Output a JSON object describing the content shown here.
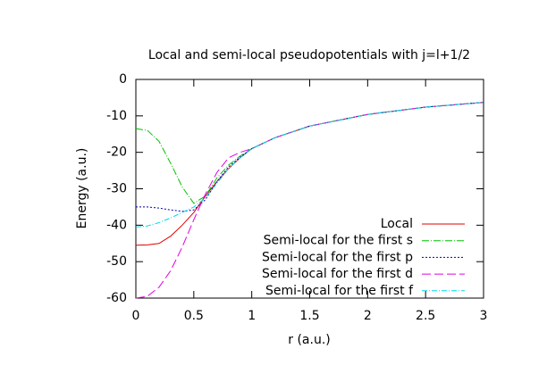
{
  "chart_data": {
    "type": "line",
    "title": "Local and semi-local pseudopotentials with j=l+1/2",
    "xlabel": "r (a.u.)",
    "ylabel": "Energy (a.u.)",
    "x": [
      0,
      0.1,
      0.2,
      0.3,
      0.4,
      0.5,
      0.6,
      0.7,
      0.8,
      0.9,
      1.0,
      1.2,
      1.5,
      2.0,
      2.5,
      3.0
    ],
    "series": [
      {
        "name": "Local",
        "color": "#e00000",
        "values": [
          -45.5,
          -45.4,
          -45,
          -43,
          -40,
          -36.5,
          -32,
          -28,
          -24.5,
          -21.5,
          -19,
          -16,
          -12.8,
          -9.6,
          -7.6,
          -6.3
        ]
      },
      {
        "name": "Semi-local for the first s",
        "color": "#00c000",
        "values": [
          -13.5,
          -14,
          -17,
          -23,
          -29.5,
          -34,
          -32,
          -27,
          -23.5,
          -21,
          -19,
          -16,
          -12.8,
          -9.6,
          -7.6,
          -6.3
        ]
      },
      {
        "name": "Semi-local for the first p",
        "color": "#0000b0",
        "values": [
          -35,
          -35,
          -35.3,
          -35.8,
          -36.2,
          -35.8,
          -33,
          -28,
          -24,
          -21.3,
          -19,
          -16,
          -12.8,
          -9.6,
          -7.6,
          -6.3
        ]
      },
      {
        "name": "Semi-local for the first d",
        "color": "#e000e0",
        "values": [
          -60,
          -59.5,
          -57,
          -52.5,
          -46,
          -38.5,
          -31.5,
          -25.5,
          -21.5,
          -20,
          -19,
          -16,
          -12.8,
          -9.6,
          -7.6,
          -6.3
        ]
      },
      {
        "name": "Semi-local for the first f",
        "color": "#00d8e8",
        "values": [
          -40.5,
          -40.2,
          -39.3,
          -38,
          -36.5,
          -35,
          -32.5,
          -28.5,
          -24.5,
          -21.5,
          -19,
          -16,
          -12.8,
          -9.6,
          -7.6,
          -6.3
        ]
      }
    ],
    "xlim": [
      0,
      3
    ],
    "xticks": [
      0,
      0.5,
      1,
      1.5,
      2,
      2.5,
      3
    ],
    "ylim": [
      -60,
      0
    ],
    "yticks": [
      0,
      -10,
      -20,
      -30,
      -40,
      -50,
      -60
    ],
    "legend": "lower-right"
  }
}
